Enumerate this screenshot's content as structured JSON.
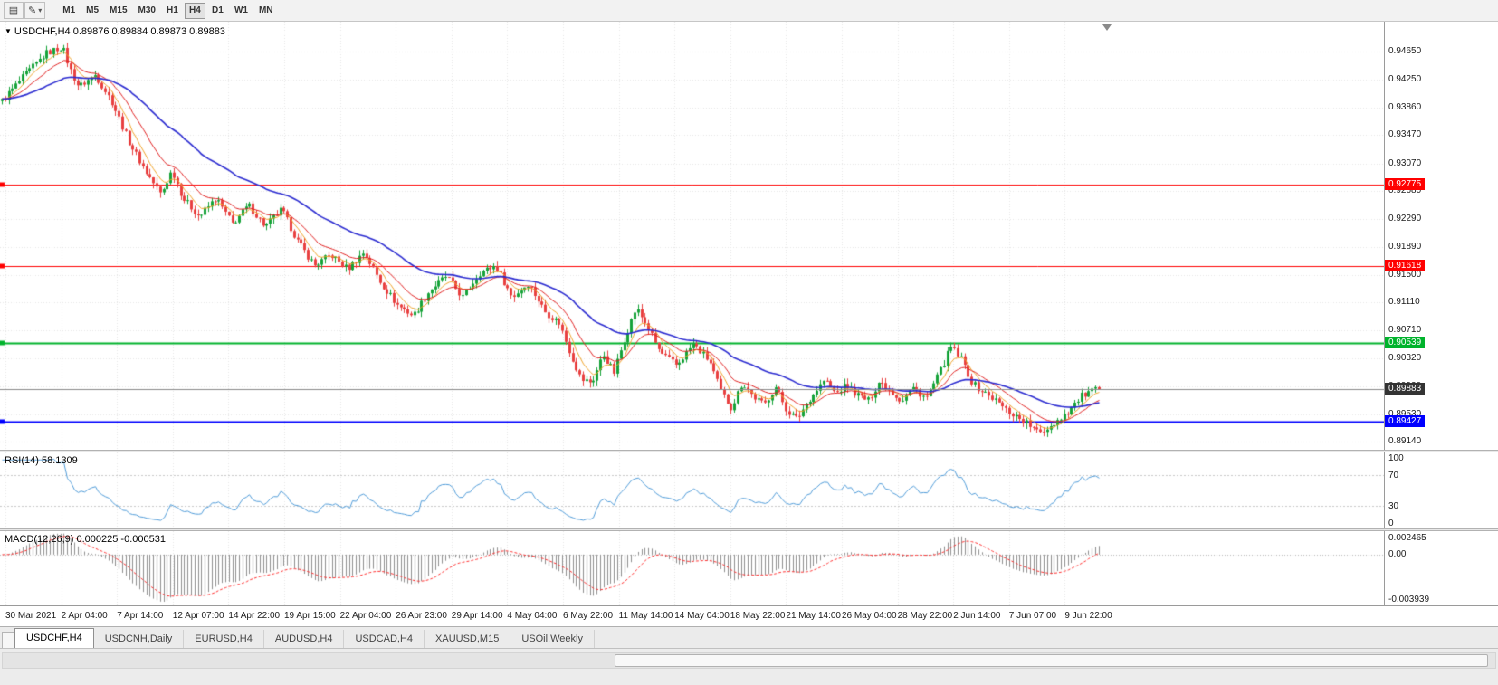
{
  "toolbar": {
    "icons": [
      {
        "name": "chart-window",
        "glyph": "▤"
      },
      {
        "name": "draw-tools",
        "glyph": "✎",
        "caret": "▾"
      }
    ],
    "timeframes": [
      "M1",
      "M5",
      "M15",
      "M30",
      "H1",
      "H4",
      "D1",
      "W1",
      "MN"
    ],
    "active_timeframe": "H4"
  },
  "chart": {
    "title": "USDCHF,H4 0.89876 0.89884 0.89873 0.89883",
    "dropdown_glyph": "▼",
    "symbol": "USDCHF",
    "period": "H4",
    "ohlc": {
      "open": "0.89876",
      "high": "0.89884",
      "low": "0.89873",
      "close": "0.89883"
    },
    "price_axis": [
      "0.94650",
      "0.94250",
      "0.93860",
      "0.93470",
      "0.93070",
      "0.92680",
      "0.92290",
      "0.91890",
      "0.91500",
      "0.91110",
      "0.90710",
      "0.90320",
      "0.89930",
      "0.89530",
      "0.89140"
    ],
    "levels": [
      {
        "price": 0.92775,
        "label": "0.92775",
        "color": "#ff0000",
        "width": 1
      },
      {
        "price": 0.91618,
        "label": "0.91618",
        "color": "#ff0000",
        "width": 1
      },
      {
        "price": 0.90539,
        "label": "0.90539",
        "color": "#00b32c",
        "width": 2
      },
      {
        "price": 0.89427,
        "label": "0.89427",
        "color": "#0000ff",
        "width": 2
      }
    ],
    "current": {
      "price": 0.89883,
      "label": "0.89883",
      "color": "#333333"
    }
  },
  "rsi": {
    "label": "RSI(14) 58.1309",
    "value": "58.1309",
    "axis": [
      "100",
      "70",
      "30",
      "0"
    ],
    "levels": [
      70,
      30
    ]
  },
  "macd": {
    "label": "MACD(12,26,9) 0.000225 -0.000531",
    "values": [
      "0.000225",
      "-0.000531"
    ],
    "axis_max": "0.002465",
    "axis_zero": "0.00",
    "axis_min": "-0.003939"
  },
  "time_axis": [
    "30 Mar 2021",
    "2 Apr 04:00",
    "7 Apr 14:00",
    "12 Apr 07:00",
    "14 Apr 22:00",
    "19 Apr 15:00",
    "22 Apr 04:00",
    "26 Apr 23:00",
    "29 Apr 14:00",
    "4 May 04:00",
    "6 May 22:00",
    "11 May 14:00",
    "14 May 04:00",
    "18 May 22:00",
    "21 May 14:00",
    "26 May 04:00",
    "28 May 22:00",
    "2 Jun 14:00",
    "7 Jun 07:00",
    "9 Jun 22:00"
  ],
  "tabs": [
    "USDCHF,H4",
    "USDCNH,Daily",
    "EURUSD,H4",
    "AUDUSD,H4",
    "USDCAD,H4",
    "XAUUSD,M15",
    "USOil,Weekly"
  ],
  "active_tab": "USDCHF,H4",
  "chart_data": {
    "type": "candlestick",
    "symbol": "USDCHF",
    "timeframe": "H4",
    "title": "USDCHF,H4",
    "y_range": [
      0.8903,
      0.9507
    ],
    "x_span": 0.795,
    "candle_count": 320,
    "noise": 0.001,
    "visible_time_range": [
      "30 Mar 2021",
      "11 Jun 2021"
    ],
    "anchors": [
      [
        0,
        0.9395
      ],
      [
        0.02,
        0.943
      ],
      [
        0.04,
        0.9462
      ],
      [
        0.055,
        0.9472
      ],
      [
        0.062,
        0.944
      ],
      [
        0.07,
        0.9415
      ],
      [
        0.085,
        0.9432
      ],
      [
        0.1,
        0.9395
      ],
      [
        0.115,
        0.934
      ],
      [
        0.13,
        0.9298
      ],
      [
        0.145,
        0.9263
      ],
      [
        0.155,
        0.9298
      ],
      [
        0.165,
        0.9258
      ],
      [
        0.18,
        0.9232
      ],
      [
        0.195,
        0.9258
      ],
      [
        0.21,
        0.9222
      ],
      [
        0.225,
        0.9248
      ],
      [
        0.24,
        0.9218
      ],
      [
        0.255,
        0.9242
      ],
      [
        0.27,
        0.9196
      ],
      [
        0.285,
        0.9163
      ],
      [
        0.3,
        0.9178
      ],
      [
        0.315,
        0.9158
      ],
      [
        0.33,
        0.9182
      ],
      [
        0.345,
        0.914
      ],
      [
        0.36,
        0.9108
      ],
      [
        0.375,
        0.9092
      ],
      [
        0.39,
        0.9128
      ],
      [
        0.405,
        0.9148
      ],
      [
        0.42,
        0.9118
      ],
      [
        0.435,
        0.9152
      ],
      [
        0.45,
        0.9163
      ],
      [
        0.465,
        0.9118
      ],
      [
        0.48,
        0.9138
      ],
      [
        0.495,
        0.9098
      ],
      [
        0.508,
        0.9082
      ],
      [
        0.518,
        0.904
      ],
      [
        0.528,
        0.9002
      ],
      [
        0.538,
        0.8998
      ],
      [
        0.548,
        0.9038
      ],
      [
        0.558,
        0.9012
      ],
      [
        0.568,
        0.9062
      ],
      [
        0.578,
        0.9103
      ],
      [
        0.588,
        0.9078
      ],
      [
        0.6,
        0.904
      ],
      [
        0.615,
        0.9022
      ],
      [
        0.63,
        0.9052
      ],
      [
        0.645,
        0.9028
      ],
      [
        0.655,
        0.8986
      ],
      [
        0.665,
        0.8962
      ],
      [
        0.675,
        0.8998
      ],
      [
        0.685,
        0.8978
      ],
      [
        0.695,
        0.8966
      ],
      [
        0.705,
        0.8992
      ],
      [
        0.715,
        0.896
      ],
      [
        0.725,
        0.8946
      ],
      [
        0.735,
        0.8972
      ],
      [
        0.75,
        0.9002
      ],
      [
        0.76,
        0.8982
      ],
      [
        0.77,
        0.8994
      ],
      [
        0.78,
        0.898
      ],
      [
        0.79,
        0.8972
      ],
      [
        0.8,
        0.9
      ],
      [
        0.81,
        0.8986
      ],
      [
        0.82,
        0.8972
      ],
      [
        0.83,
        0.899
      ],
      [
        0.843,
        0.8976
      ],
      [
        0.855,
        0.9012
      ],
      [
        0.865,
        0.9048
      ],
      [
        0.875,
        0.903
      ],
      [
        0.885,
        0.8996
      ],
      [
        0.895,
        0.8984
      ],
      [
        0.905,
        0.8974
      ],
      [
        0.915,
        0.896
      ],
      [
        0.925,
        0.895
      ],
      [
        0.935,
        0.894
      ],
      [
        0.945,
        0.8926
      ],
      [
        0.955,
        0.8936
      ],
      [
        0.965,
        0.8948
      ],
      [
        0.975,
        0.8962
      ],
      [
        0.985,
        0.898
      ],
      [
        1,
        0.89883
      ]
    ],
    "indicators": {
      "ma_fast": 6,
      "ma_mid": 14,
      "ma_slow": 42,
      "rsi_period": 14,
      "macd": [
        12,
        26,
        9
      ]
    },
    "colors": {
      "up": "#16a339",
      "down": "#e84040",
      "ma_fast": "#efa32a",
      "ma_mid": "#e02020",
      "ma_slow": "#2b2bd0",
      "rsi": "#4f9bd8",
      "macd_hist": "#8f8f8f",
      "macd_signal": "#ff3030",
      "grid": "#e6e6e6",
      "rsi_level": "#c8c8c8",
      "current_line": "#8a8a8a"
    }
  }
}
